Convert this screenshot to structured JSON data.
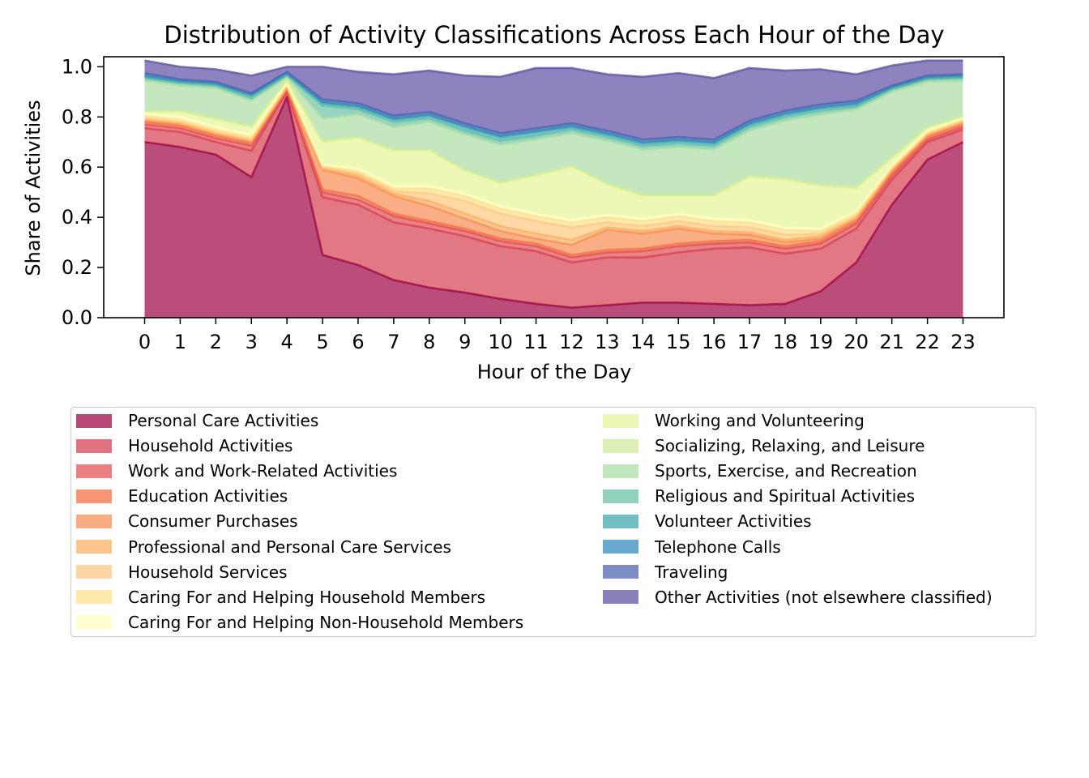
{
  "chart_data": {
    "type": "area",
    "stacked": true,
    "title": "Distribution of Activity Classifications Across Each Hour of the Day",
    "xlabel": "Hour of the Day",
    "ylabel": "Share of Activities",
    "x": [
      0,
      1,
      2,
      3,
      4,
      5,
      6,
      7,
      8,
      9,
      10,
      11,
      12,
      13,
      14,
      15,
      16,
      17,
      18,
      19,
      20,
      21,
      22,
      23
    ],
    "x_tick_labels": [
      "0",
      "1",
      "2",
      "3",
      "4",
      "5",
      "6",
      "7",
      "8",
      "9",
      "10",
      "11",
      "12",
      "13",
      "14",
      "15",
      "16",
      "17",
      "18",
      "19",
      "20",
      "21",
      "22",
      "23"
    ],
    "xlim": [
      -1.15,
      24.15
    ],
    "ylim": [
      0,
      1.04
    ],
    "y_ticks": [
      0.0,
      0.2,
      0.4,
      0.6,
      0.8,
      1.0
    ],
    "y_tick_labels": [
      "0.0",
      "0.2",
      "0.4",
      "0.6",
      "0.8",
      "1.0"
    ],
    "grid": false,
    "legend_placement": "below",
    "series": [
      {
        "name": "Personal Care Activities",
        "color": "#9e0142",
        "values": [
          0.7,
          0.68,
          0.65,
          0.56,
          0.88,
          0.25,
          0.21,
          0.15,
          0.12,
          0.1,
          0.075,
          0.055,
          0.04,
          0.05,
          0.06,
          0.06,
          0.055,
          0.05,
          0.055,
          0.105,
          0.22,
          0.45,
          0.63,
          0.7
        ]
      },
      {
        "name": "Household Activities",
        "color": "#d53e4f",
        "values": [
          0.055,
          0.06,
          0.05,
          0.105,
          0.02,
          0.23,
          0.24,
          0.23,
          0.235,
          0.225,
          0.21,
          0.21,
          0.18,
          0.19,
          0.18,
          0.2,
          0.22,
          0.23,
          0.2,
          0.17,
          0.135,
          0.1,
          0.07,
          0.05
        ]
      },
      {
        "name": "Work and Work-Related Activities",
        "color": "#e04e52",
        "values": [
          0.015,
          0.015,
          0.015,
          0.02,
          0.005,
          0.02,
          0.02,
          0.025,
          0.02,
          0.02,
          0.02,
          0.02,
          0.02,
          0.02,
          0.025,
          0.025,
          0.02,
          0.02,
          0.02,
          0.02,
          0.02,
          0.015,
          0.01,
          0.01
        ]
      },
      {
        "name": "Education Activities",
        "color": "#f46d43",
        "values": [
          0.01,
          0.01,
          0.01,
          0.01,
          0.005,
          0.01,
          0.015,
          0.01,
          0.01,
          0.01,
          0.01,
          0.01,
          0.01,
          0.01,
          0.01,
          0.01,
          0.01,
          0.01,
          0.01,
          0.01,
          0.01,
          0.01,
          0.01,
          0.01
        ]
      },
      {
        "name": "Consumer Purchases",
        "color": "#f88c51",
        "values": [
          0.005,
          0.005,
          0.005,
          0.005,
          0.005,
          0.08,
          0.07,
          0.07,
          0.06,
          0.04,
          0.03,
          0.02,
          0.04,
          0.08,
          0.06,
          0.06,
          0.03,
          0.02,
          0.015,
          0.01,
          0.01,
          0.01,
          0.005,
          0.005
        ]
      },
      {
        "name": "Professional and Personal Care Services",
        "color": "#fdae61",
        "values": [
          0.005,
          0.005,
          0.005,
          0.005,
          0.005,
          0.005,
          0.01,
          0.01,
          0.02,
          0.02,
          0.02,
          0.02,
          0.02,
          0.01,
          0.01,
          0.01,
          0.01,
          0.01,
          0.01,
          0.01,
          0.005,
          0.005,
          0.005,
          0.005
        ]
      },
      {
        "name": "Household Services",
        "color": "#fdc980",
        "values": [
          0.005,
          0.005,
          0.005,
          0.005,
          0.005,
          0.005,
          0.01,
          0.01,
          0.03,
          0.05,
          0.05,
          0.05,
          0.05,
          0.02,
          0.02,
          0.02,
          0.02,
          0.02,
          0.02,
          0.01,
          0.005,
          0.005,
          0.005,
          0.005
        ]
      },
      {
        "name": "Caring For and Helping Household Members",
        "color": "#fee08b",
        "values": [
          0.01,
          0.01,
          0.01,
          0.01,
          0.005,
          0.005,
          0.01,
          0.01,
          0.02,
          0.02,
          0.02,
          0.02,
          0.02,
          0.02,
          0.02,
          0.02,
          0.02,
          0.02,
          0.02,
          0.01,
          0.01,
          0.005,
          0.005,
          0.005
        ]
      },
      {
        "name": "Caring For and Helping Non-Household Members",
        "color": "#ffffbf",
        "values": [
          0.01,
          0.01,
          0.01,
          0.01,
          0.005,
          0.005,
          0.01,
          0.01,
          0.01,
          0.01,
          0.01,
          0.01,
          0.01,
          0.01,
          0.01,
          0.01,
          0.01,
          0.01,
          0.01,
          0.01,
          0.01,
          0.005,
          0.005,
          0.005
        ]
      },
      {
        "name": "Working and Volunteering",
        "color": "#e6f598",
        "values": [
          0.005,
          0.02,
          0.03,
          0.03,
          0.01,
          0.09,
          0.12,
          0.14,
          0.14,
          0.09,
          0.09,
          0.15,
          0.21,
          0.12,
          0.09,
          0.07,
          0.09,
          0.17,
          0.19,
          0.17,
          0.09,
          0.03,
          0.01,
          0.005
        ]
      },
      {
        "name": "Socializing, Relaxing, and Leisure",
        "color": "#d0ec9c",
        "values": [
          0.005,
          0.005,
          0.005,
          0.005,
          0.005,
          0.005,
          0.005,
          0.005,
          0.005,
          0.005,
          0.005,
          0.005,
          0.005,
          0.005,
          0.005,
          0.005,
          0.005,
          0.005,
          0.005,
          0.005,
          0.005,
          0.005,
          0.005,
          0.005
        ]
      },
      {
        "name": "Sports, Exercise, and Recreation",
        "color": "#abdda4",
        "values": [
          0.12,
          0.1,
          0.12,
          0.1,
          0.01,
          0.09,
          0.09,
          0.09,
          0.11,
          0.14,
          0.15,
          0.14,
          0.13,
          0.17,
          0.18,
          0.19,
          0.18,
          0.18,
          0.23,
          0.28,
          0.31,
          0.26,
          0.18,
          0.14
        ]
      },
      {
        "name": "Religious and Spiritual Activities",
        "color": "#66c2a5",
        "values": [
          0.01,
          0.01,
          0.01,
          0.01,
          0.005,
          0.05,
          0.02,
          0.02,
          0.015,
          0.015,
          0.015,
          0.015,
          0.015,
          0.015,
          0.015,
          0.015,
          0.015,
          0.015,
          0.015,
          0.015,
          0.01,
          0.01,
          0.01,
          0.01
        ]
      },
      {
        "name": "Volunteer Activities",
        "color": "#40a7ad",
        "values": [
          0.005,
          0.005,
          0.005,
          0.01,
          0.005,
          0.01,
          0.01,
          0.01,
          0.01,
          0.015,
          0.015,
          0.015,
          0.01,
          0.01,
          0.01,
          0.01,
          0.01,
          0.01,
          0.01,
          0.01,
          0.01,
          0.005,
          0.005,
          0.005
        ]
      },
      {
        "name": "Telephone Calls",
        "color": "#3288bd",
        "values": [
          0.005,
          0.005,
          0.005,
          0.005,
          0.005,
          0.005,
          0.005,
          0.005,
          0.005,
          0.005,
          0.005,
          0.005,
          0.005,
          0.005,
          0.005,
          0.005,
          0.005,
          0.005,
          0.005,
          0.005,
          0.005,
          0.005,
          0.005,
          0.005
        ]
      },
      {
        "name": "Traveling",
        "color": "#4a62b0",
        "values": [
          0.01,
          0.005,
          0.005,
          0.005,
          0.005,
          0.01,
          0.01,
          0.01,
          0.01,
          0.01,
          0.01,
          0.01,
          0.01,
          0.01,
          0.01,
          0.01,
          0.01,
          0.01,
          0.01,
          0.01,
          0.01,
          0.005,
          0.005,
          0.005
        ]
      },
      {
        "name": "Other Activities (not elsewhere classified)",
        "color": "#5e4fa2",
        "values": [
          0.05,
          0.05,
          0.05,
          0.07,
          0.02,
          0.13,
          0.125,
          0.165,
          0.165,
          0.19,
          0.225,
          0.24,
          0.22,
          0.225,
          0.25,
          0.255,
          0.245,
          0.21,
          0.16,
          0.14,
          0.105,
          0.08,
          0.06,
          0.055
        ]
      }
    ]
  }
}
